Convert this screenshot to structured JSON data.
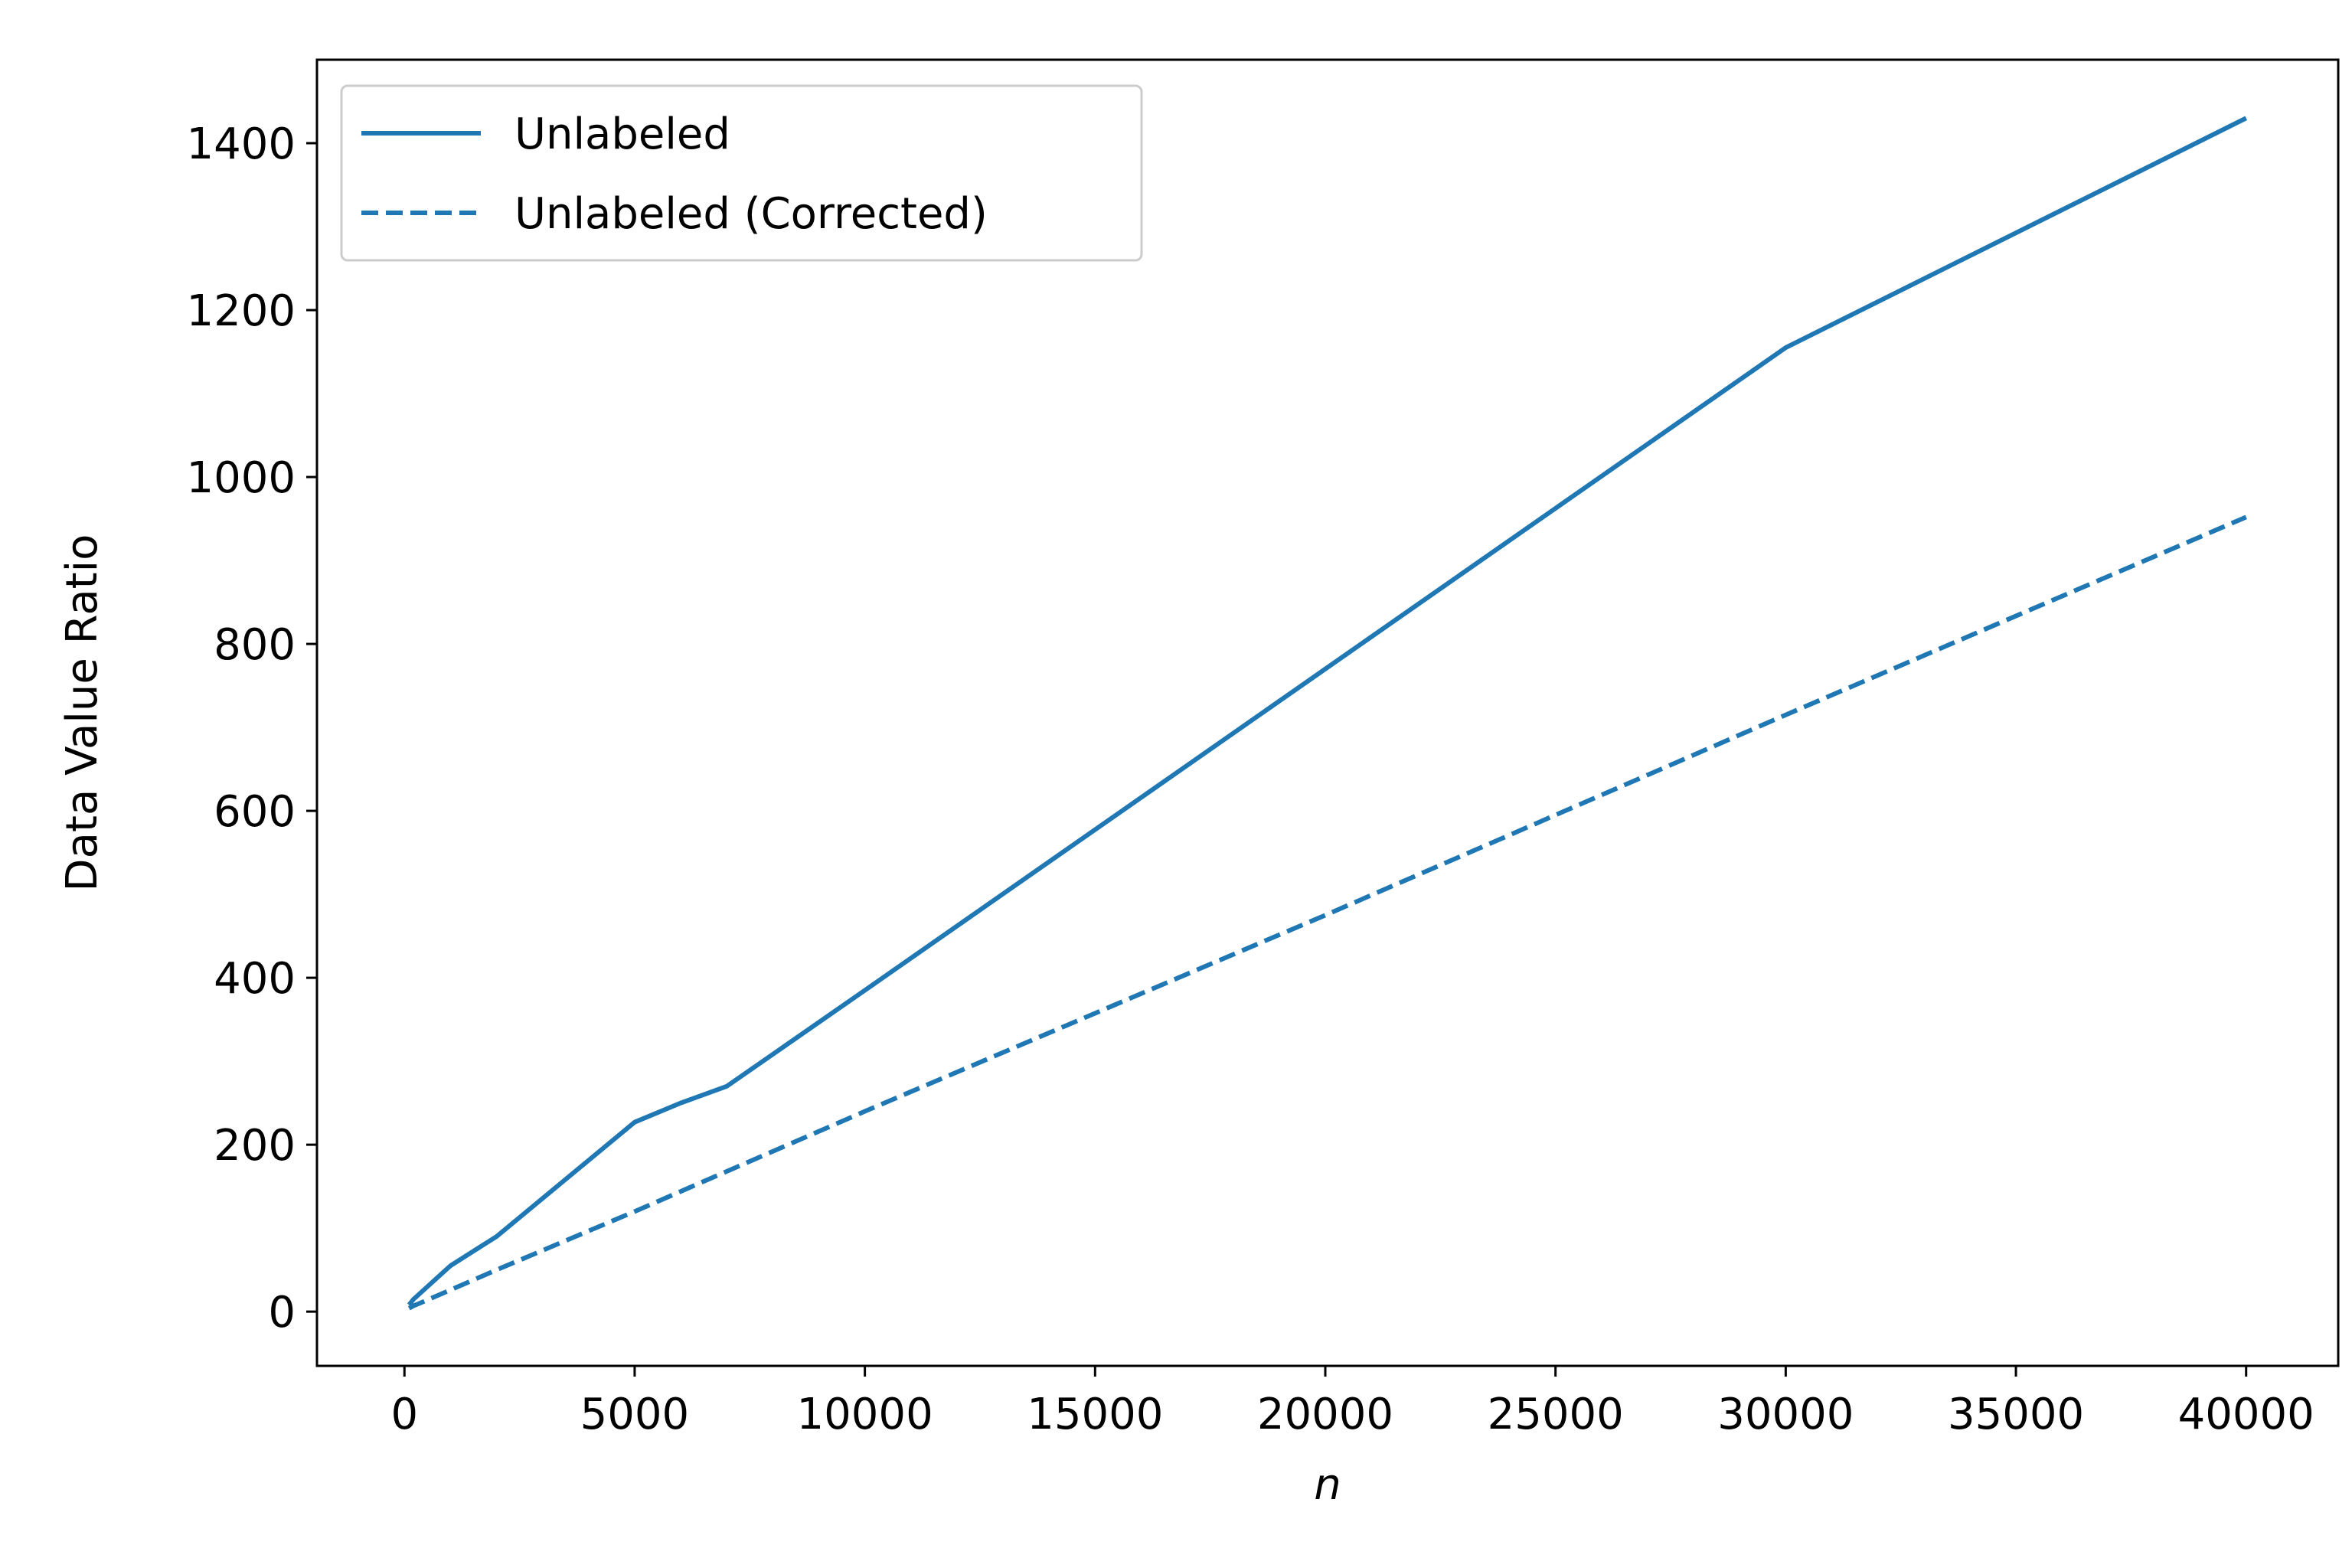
{
  "chart_data": {
    "type": "line",
    "xlabel": "n",
    "ylabel": "Data Value Ratio",
    "xlim": [
      -1900,
      42000
    ],
    "ylim": [
      -65,
      1500
    ],
    "x_ticks": [
      0,
      5000,
      10000,
      15000,
      20000,
      25000,
      30000,
      35000,
      40000
    ],
    "y_ticks": [
      0,
      200,
      400,
      600,
      800,
      1000,
      1200,
      1400
    ],
    "grid": false,
    "legend": {
      "position": "top-left"
    },
    "series": [
      {
        "name": "Unlabeled",
        "style": "solid",
        "color": "#1f77b4",
        "x": [
          100,
          200,
          500,
          1000,
          2000,
          5000,
          6000,
          7000,
          10000,
          20000,
          30000,
          40000
        ],
        "y": [
          8,
          15,
          30,
          55,
          90,
          227,
          250,
          270,
          385,
          770,
          1155,
          1430
        ]
      },
      {
        "name": "Unlabeled (Corrected)",
        "style": "dashed",
        "color": "#1f77b4",
        "x": [
          100,
          200,
          500,
          1000,
          2000,
          5000,
          10000,
          20000,
          30000,
          40000
        ],
        "y": [
          4,
          7,
          14,
          26,
          50,
          120,
          240,
          475,
          715,
          952
        ]
      }
    ]
  }
}
